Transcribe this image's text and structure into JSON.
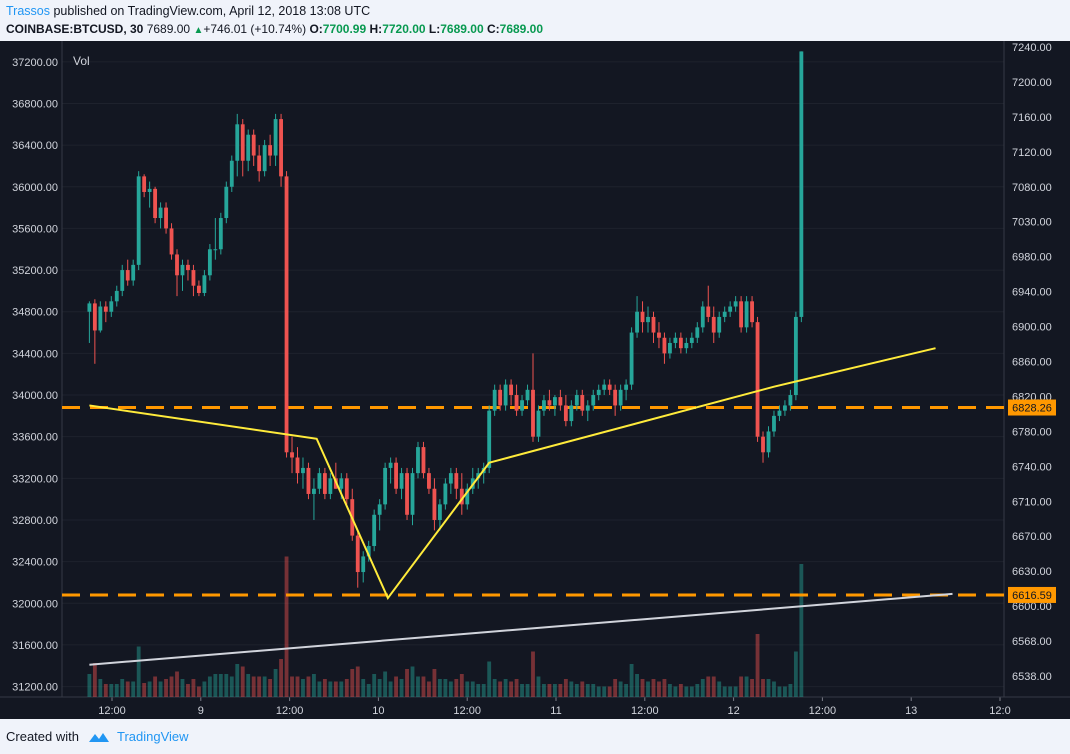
{
  "header": {
    "author": "Trassos",
    "published_text": "published on TradingView.com, April 12, 2018 13:08 UTC",
    "symbol": "COINBASE:BTCUSD, 30",
    "last": "7689.00",
    "change": "+746.01 (+10.74%)",
    "o_label": "O:",
    "o_value": "7700.99",
    "h_label": "H:",
    "h_value": "7720.00",
    "l_label": "L:",
    "l_value": "7689.00",
    "c_label": "C:",
    "c_value": "7689.00"
  },
  "footer": {
    "created_with": "Created with",
    "brand": "TradingView"
  },
  "colors": {
    "up": "#26a69a",
    "down": "#ef5350",
    "levels": "#ff9800",
    "trend": "#ffeb3b",
    "volume_trend": "#d1d4dc",
    "background": "#131722"
  },
  "chart_data": {
    "type": "candlestick",
    "volume_label": "Vol",
    "left_axis": {
      "ticks": [
        "37200.00",
        "36800.00",
        "36400.00",
        "36000.00",
        "35600.00",
        "35200.00",
        "34800.00",
        "34400.00",
        "34000.00",
        "33600.00",
        "33200.00",
        "32800.00",
        "32400.00",
        "32000.00",
        "31600.00",
        "31200.00"
      ],
      "range": [
        31100,
        37400
      ]
    },
    "right_axis": {
      "ticks": [
        "7240.00",
        "7200.00",
        "7160.00",
        "7120.00",
        "7080.00",
        "7030.00",
        "6980.00",
        "6940.00",
        "6900.00",
        "6860.00",
        "6820.00",
        "6780.00",
        "6740.00",
        "6710.00",
        "6670.00",
        "6630.00",
        "6600.00",
        "6568.00",
        "6538.00"
      ]
    },
    "x_axis": {
      "ticks": [
        "12:00",
        "9",
        "12:00",
        "10",
        "12:00",
        "11",
        "12:00",
        "12",
        "12:00",
        "13",
        "12:0"
      ]
    },
    "price_levels": [
      {
        "label": "6828.26",
        "value": 6828.26,
        "left_value": 33880
      },
      {
        "label": "6616.59",
        "value": 6616.59,
        "left_value": 32080
      }
    ],
    "annotations": {
      "zigzag": [
        [
          34400,
          33900
        ],
        [
          34815,
          33580
        ],
        [
          34945,
          32050
        ],
        [
          35130,
          33350
        ],
        [
          35650,
          34080
        ],
        [
          35945,
          34450
        ]
      ],
      "rising_trend": [
        [
          34400,
          31410
        ],
        [
          35976,
          32090
        ]
      ]
    },
    "time_range": [
      34350,
      36070
    ],
    "candles": [
      {
        "t": 34400,
        "o": 34800,
        "h": 34900,
        "l": 34500,
        "c": 34880
      },
      {
        "t": 34410,
        "o": 34880,
        "h": 34920,
        "l": 34300,
        "c": 34620
      },
      {
        "t": 34420,
        "o": 34620,
        "h": 34900,
        "l": 34600,
        "c": 34850
      },
      {
        "t": 34430,
        "o": 34850,
        "h": 34900,
        "l": 34700,
        "c": 34800
      },
      {
        "t": 34440,
        "o": 34800,
        "h": 34950,
        "l": 34750,
        "c": 34900
      },
      {
        "t": 34450,
        "o": 34900,
        "h": 35050,
        "l": 34850,
        "c": 35000
      },
      {
        "t": 34460,
        "o": 35000,
        "h": 35250,
        "l": 34950,
        "c": 35200
      },
      {
        "t": 34470,
        "o": 35200,
        "h": 35300,
        "l": 35050,
        "c": 35100
      },
      {
        "t": 34480,
        "o": 35100,
        "h": 35300,
        "l": 35050,
        "c": 35250
      },
      {
        "t": 34490,
        "o": 35250,
        "h": 36150,
        "l": 35200,
        "c": 36100
      },
      {
        "t": 34500,
        "o": 36100,
        "h": 36120,
        "l": 35900,
        "c": 35950
      },
      {
        "t": 34510,
        "o": 35950,
        "h": 36050,
        "l": 35800,
        "c": 35980
      },
      {
        "t": 34520,
        "o": 35980,
        "h": 36000,
        "l": 35650,
        "c": 35700
      },
      {
        "t": 34530,
        "o": 35700,
        "h": 35850,
        "l": 35600,
        "c": 35800
      },
      {
        "t": 34540,
        "o": 35800,
        "h": 35850,
        "l": 35550,
        "c": 35600
      },
      {
        "t": 34550,
        "o": 35600,
        "h": 35650,
        "l": 35300,
        "c": 35350
      },
      {
        "t": 34560,
        "o": 35350,
        "h": 35400,
        "l": 34950,
        "c": 35150
      },
      {
        "t": 34570,
        "o": 35150,
        "h": 35300,
        "l": 35000,
        "c": 35250
      },
      {
        "t": 34580,
        "o": 35250,
        "h": 35300,
        "l": 35100,
        "c": 35200
      },
      {
        "t": 34590,
        "o": 35200,
        "h": 35250,
        "l": 34950,
        "c": 35050
      },
      {
        "t": 34600,
        "o": 35050,
        "h": 35100,
        "l": 34950,
        "c": 34980
      },
      {
        "t": 34610,
        "o": 34980,
        "h": 35200,
        "l": 34950,
        "c": 35150
      },
      {
        "t": 34620,
        "o": 35150,
        "h": 35450,
        "l": 35100,
        "c": 35400
      },
      {
        "t": 34630,
        "o": 35400,
        "h": 35700,
        "l": 35300,
        "c": 35400
      },
      {
        "t": 34640,
        "o": 35400,
        "h": 35750,
        "l": 35350,
        "c": 35700
      },
      {
        "t": 34650,
        "o": 35700,
        "h": 36050,
        "l": 35650,
        "c": 36000
      },
      {
        "t": 34660,
        "o": 36000,
        "h": 36300,
        "l": 35950,
        "c": 36250
      },
      {
        "t": 34670,
        "o": 36250,
        "h": 36700,
        "l": 36100,
        "c": 36600
      },
      {
        "t": 34680,
        "o": 36600,
        "h": 36650,
        "l": 36100,
        "c": 36250
      },
      {
        "t": 34690,
        "o": 36250,
        "h": 36550,
        "l": 36150,
        "c": 36500
      },
      {
        "t": 34700,
        "o": 36500,
        "h": 36550,
        "l": 36200,
        "c": 36300
      },
      {
        "t": 34710,
        "o": 36300,
        "h": 36400,
        "l": 36050,
        "c": 36150
      },
      {
        "t": 34720,
        "o": 36150,
        "h": 36450,
        "l": 36100,
        "c": 36400
      },
      {
        "t": 34730,
        "o": 36400,
        "h": 36500,
        "l": 36200,
        "c": 36300
      },
      {
        "t": 34740,
        "o": 36300,
        "h": 36700,
        "l": 36200,
        "c": 36650
      },
      {
        "t": 34750,
        "o": 36650,
        "h": 36700,
        "l": 36000,
        "c": 36100
      },
      {
        "t": 34760,
        "o": 36100,
        "h": 36150,
        "l": 33400,
        "c": 33450
      },
      {
        "t": 34770,
        "o": 33450,
        "h": 33600,
        "l": 33250,
        "c": 33400
      },
      {
        "t": 34780,
        "o": 33400,
        "h": 33500,
        "l": 33150,
        "c": 33250
      },
      {
        "t": 34790,
        "o": 33250,
        "h": 33400,
        "l": 33100,
        "c": 33300
      },
      {
        "t": 34800,
        "o": 33300,
        "h": 33350,
        "l": 33000,
        "c": 33050
      },
      {
        "t": 34810,
        "o": 33050,
        "h": 33200,
        "l": 32800,
        "c": 33100
      },
      {
        "t": 34820,
        "o": 33100,
        "h": 33300,
        "l": 33050,
        "c": 33250
      },
      {
        "t": 34830,
        "o": 33250,
        "h": 33300,
        "l": 33000,
        "c": 33050
      },
      {
        "t": 34840,
        "o": 33050,
        "h": 33250,
        "l": 33000,
        "c": 33200
      },
      {
        "t": 34850,
        "o": 33200,
        "h": 33350,
        "l": 33100,
        "c": 33100
      },
      {
        "t": 34860,
        "o": 33100,
        "h": 33250,
        "l": 33000,
        "c": 33200
      },
      {
        "t": 34870,
        "o": 33200,
        "h": 33250,
        "l": 32950,
        "c": 33000
      },
      {
        "t": 34880,
        "o": 33000,
        "h": 33100,
        "l": 32600,
        "c": 32650
      },
      {
        "t": 34890,
        "o": 32650,
        "h": 32700,
        "l": 32150,
        "c": 32300
      },
      {
        "t": 34900,
        "o": 32300,
        "h": 32500,
        "l": 32200,
        "c": 32450
      },
      {
        "t": 34910,
        "o": 32450,
        "h": 32600,
        "l": 32400,
        "c": 32550
      },
      {
        "t": 34920,
        "o": 32550,
        "h": 32900,
        "l": 32500,
        "c": 32850
      },
      {
        "t": 34930,
        "o": 32850,
        "h": 33000,
        "l": 32700,
        "c": 32950
      },
      {
        "t": 34940,
        "o": 32950,
        "h": 33350,
        "l": 32900,
        "c": 33300
      },
      {
        "t": 34950,
        "o": 33300,
        "h": 33400,
        "l": 33150,
        "c": 33350
      },
      {
        "t": 34960,
        "o": 33350,
        "h": 33400,
        "l": 33050,
        "c": 33100
      },
      {
        "t": 34970,
        "o": 33100,
        "h": 33300,
        "l": 33000,
        "c": 33250
      },
      {
        "t": 34980,
        "o": 33250,
        "h": 33300,
        "l": 32800,
        "c": 32850
      },
      {
        "t": 34990,
        "o": 32850,
        "h": 33300,
        "l": 32750,
        "c": 33250
      },
      {
        "t": 35000,
        "o": 33250,
        "h": 33550,
        "l": 33200,
        "c": 33500
      },
      {
        "t": 35010,
        "o": 33500,
        "h": 33550,
        "l": 33200,
        "c": 33250
      },
      {
        "t": 35020,
        "o": 33250,
        "h": 33300,
        "l": 33050,
        "c": 33100
      },
      {
        "t": 35030,
        "o": 33100,
        "h": 33200,
        "l": 32700,
        "c": 32800
      },
      {
        "t": 35040,
        "o": 32800,
        "h": 33000,
        "l": 32700,
        "c": 32950
      },
      {
        "t": 35050,
        "o": 32950,
        "h": 33200,
        "l": 32900,
        "c": 33150
      },
      {
        "t": 35060,
        "o": 33150,
        "h": 33300,
        "l": 33050,
        "c": 33250
      },
      {
        "t": 35070,
        "o": 33250,
        "h": 33300,
        "l": 33000,
        "c": 33100
      },
      {
        "t": 35080,
        "o": 33100,
        "h": 33250,
        "l": 32850,
        "c": 32950
      },
      {
        "t": 35090,
        "o": 32950,
        "h": 33150,
        "l": 32900,
        "c": 33100
      },
      {
        "t": 35100,
        "o": 33100,
        "h": 33300,
        "l": 33050,
        "c": 33200
      },
      {
        "t": 35110,
        "o": 33200,
        "h": 33300,
        "l": 33100,
        "c": 33250
      },
      {
        "t": 35120,
        "o": 33250,
        "h": 33350,
        "l": 33150,
        "c": 33300
      },
      {
        "t": 35130,
        "o": 33300,
        "h": 33900,
        "l": 33250,
        "c": 33850
      },
      {
        "t": 35140,
        "o": 33850,
        "h": 34100,
        "l": 33800,
        "c": 34050
      },
      {
        "t": 35150,
        "o": 34050,
        "h": 34100,
        "l": 33850,
        "c": 33900
      },
      {
        "t": 35160,
        "o": 33900,
        "h": 34150,
        "l": 33850,
        "c": 34100
      },
      {
        "t": 35170,
        "o": 34100,
        "h": 34150,
        "l": 33900,
        "c": 34000
      },
      {
        "t": 35180,
        "o": 34000,
        "h": 34100,
        "l": 33800,
        "c": 33850
      },
      {
        "t": 35190,
        "o": 33850,
        "h": 34000,
        "l": 33800,
        "c": 33950
      },
      {
        "t": 35200,
        "o": 33950,
        "h": 34100,
        "l": 33900,
        "c": 34050
      },
      {
        "t": 35210,
        "o": 34050,
        "h": 34400,
        "l": 33550,
        "c": 33600
      },
      {
        "t": 35220,
        "o": 33600,
        "h": 33900,
        "l": 33550,
        "c": 33850
      },
      {
        "t": 35230,
        "o": 33850,
        "h": 34000,
        "l": 33800,
        "c": 33950
      },
      {
        "t": 35240,
        "o": 33950,
        "h": 34050,
        "l": 33850,
        "c": 33900
      },
      {
        "t": 35250,
        "o": 33900,
        "h": 34000,
        "l": 33800,
        "c": 33980
      },
      {
        "t": 35260,
        "o": 33980,
        "h": 34050,
        "l": 33850,
        "c": 33900
      },
      {
        "t": 35270,
        "o": 33900,
        "h": 34000,
        "l": 33700,
        "c": 33750
      },
      {
        "t": 35280,
        "o": 33750,
        "h": 33950,
        "l": 33700,
        "c": 33900
      },
      {
        "t": 35290,
        "o": 33900,
        "h": 34050,
        "l": 33850,
        "c": 34000
      },
      {
        "t": 35300,
        "o": 34000,
        "h": 34050,
        "l": 33800,
        "c": 33850
      },
      {
        "t": 35310,
        "o": 33850,
        "h": 33950,
        "l": 33750,
        "c": 33900
      },
      {
        "t": 35320,
        "o": 33900,
        "h": 34050,
        "l": 33850,
        "c": 34000
      },
      {
        "t": 35330,
        "o": 34000,
        "h": 34100,
        "l": 33950,
        "c": 34050
      },
      {
        "t": 35340,
        "o": 34050,
        "h": 34150,
        "l": 34000,
        "c": 34100
      },
      {
        "t": 35350,
        "o": 34100,
        "h": 34150,
        "l": 34000,
        "c": 34050
      },
      {
        "t": 35360,
        "o": 34050,
        "h": 34100,
        "l": 33800,
        "c": 33900
      },
      {
        "t": 35370,
        "o": 33900,
        "h": 34100,
        "l": 33850,
        "c": 34050
      },
      {
        "t": 35380,
        "o": 34050,
        "h": 34150,
        "l": 33950,
        "c": 34100
      },
      {
        "t": 35390,
        "o": 34100,
        "h": 34650,
        "l": 34050,
        "c": 34600
      },
      {
        "t": 35400,
        "o": 34600,
        "h": 34950,
        "l": 34550,
        "c": 34800
      },
      {
        "t": 35410,
        "o": 34800,
        "h": 34900,
        "l": 34600,
        "c": 34700
      },
      {
        "t": 35420,
        "o": 34700,
        "h": 34850,
        "l": 34600,
        "c": 34750
      },
      {
        "t": 35430,
        "o": 34750,
        "h": 34800,
        "l": 34500,
        "c": 34600
      },
      {
        "t": 35440,
        "o": 34600,
        "h": 34700,
        "l": 34450,
        "c": 34550
      },
      {
        "t": 35450,
        "o": 34550,
        "h": 34600,
        "l": 34300,
        "c": 34400
      },
      {
        "t": 35460,
        "o": 34400,
        "h": 34550,
        "l": 34350,
        "c": 34500
      },
      {
        "t": 35470,
        "o": 34500,
        "h": 34600,
        "l": 34450,
        "c": 34550
      },
      {
        "t": 35480,
        "o": 34550,
        "h": 34600,
        "l": 34400,
        "c": 34450
      },
      {
        "t": 35490,
        "o": 34450,
        "h": 34550,
        "l": 34400,
        "c": 34500
      },
      {
        "t": 35500,
        "o": 34500,
        "h": 34600,
        "l": 34450,
        "c": 34550
      },
      {
        "t": 35510,
        "o": 34550,
        "h": 34700,
        "l": 34500,
        "c": 34650
      },
      {
        "t": 35520,
        "o": 34650,
        "h": 34900,
        "l": 34600,
        "c": 34850
      },
      {
        "t": 35530,
        "o": 34850,
        "h": 35050,
        "l": 34700,
        "c": 34750
      },
      {
        "t": 35540,
        "o": 34750,
        "h": 34850,
        "l": 34500,
        "c": 34600
      },
      {
        "t": 35550,
        "o": 34600,
        "h": 34800,
        "l": 34550,
        "c": 34750
      },
      {
        "t": 35560,
        "o": 34750,
        "h": 34850,
        "l": 34700,
        "c": 34800
      },
      {
        "t": 35570,
        "o": 34800,
        "h": 34900,
        "l": 34750,
        "c": 34850
      },
      {
        "t": 35580,
        "o": 34850,
        "h": 34950,
        "l": 34800,
        "c": 34900
      },
      {
        "t": 35590,
        "o": 34900,
        "h": 34950,
        "l": 34600,
        "c": 34650
      },
      {
        "t": 35600,
        "o": 34650,
        "h": 34950,
        "l": 34600,
        "c": 34900
      },
      {
        "t": 35610,
        "o": 34900,
        "h": 34950,
        "l": 34650,
        "c": 34700
      },
      {
        "t": 35620,
        "o": 34700,
        "h": 34750,
        "l": 33550,
        "c": 33600
      },
      {
        "t": 35630,
        "o": 33600,
        "h": 33650,
        "l": 33350,
        "c": 33450
      },
      {
        "t": 35640,
        "o": 33450,
        "h": 33700,
        "l": 33400,
        "c": 33650
      },
      {
        "t": 35650,
        "o": 33650,
        "h": 33850,
        "l": 33600,
        "c": 33800
      },
      {
        "t": 35660,
        "o": 33800,
        "h": 33900,
        "l": 33750,
        "c": 33850
      },
      {
        "t": 35670,
        "o": 33850,
        "h": 33950,
        "l": 33800,
        "c": 33900
      },
      {
        "t": 35680,
        "o": 33900,
        "h": 34050,
        "l": 33850,
        "c": 34000
      },
      {
        "t": 35690,
        "o": 34000,
        "h": 34800,
        "l": 33950,
        "c": 34750
      },
      {
        "t": 35700,
        "o": 34750,
        "h": 37300,
        "l": 34700,
        "c": 37300
      }
    ]
  }
}
